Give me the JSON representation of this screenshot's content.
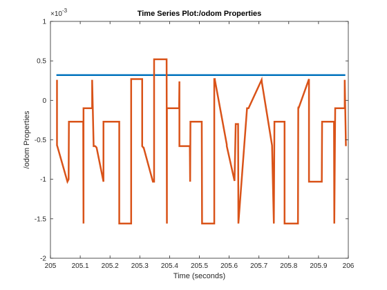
{
  "chart_data": {
    "type": "line",
    "title": "Time Series Plot:/odom Properties",
    "xlabel": "Time (seconds)",
    "ylabel": "/odom Properties",
    "xlim": [
      205,
      206
    ],
    "ylim": [
      -2,
      1
    ],
    "y_exponent_label": "×10",
    "y_exponent_value": "-3",
    "x_ticks": [
      205,
      205.1,
      205.2,
      205.3,
      205.4,
      205.5,
      205.6,
      205.7,
      205.8,
      205.9,
      206
    ],
    "x_tick_labels": [
      "205",
      "205.1",
      "205.2",
      "205.3",
      "205.4",
      "205.5",
      "205.6",
      "205.7",
      "205.8",
      "205.9",
      "206"
    ],
    "y_ticks": [
      -2,
      -1.5,
      -1,
      -0.5,
      0,
      0.5,
      1
    ],
    "y_tick_labels": [
      "-2",
      "-1.5",
      "-1",
      "-0.5",
      "0",
      "0.5",
      "1"
    ],
    "grid": false,
    "series": [
      {
        "color": "#0072BD",
        "x": [
          205.02,
          205.99
        ],
        "y": [
          0.32,
          0.32
        ]
      },
      {
        "color": "#D95319",
        "x": [
          205.022,
          205.022,
          205.023,
          205.057,
          205.061,
          205.062,
          205.062,
          205.11,
          205.111,
          205.111,
          205.113,
          205.113,
          205.14,
          205.14,
          205.145,
          205.146,
          205.15,
          205.153,
          205.155,
          205.178,
          205.178,
          205.18,
          205.231,
          205.231,
          205.232,
          205.232,
          205.271,
          205.271,
          205.308,
          205.308,
          205.312,
          205.313,
          205.344,
          205.348,
          205.348,
          205.39,
          205.391,
          205.391,
          205.432,
          205.433,
          205.433,
          205.468,
          205.469,
          205.47,
          205.47,
          205.508,
          205.509,
          205.509,
          205.55,
          205.55,
          205.552,
          205.552,
          205.592,
          205.592,
          205.618,
          205.622,
          205.63,
          205.631,
          205.66,
          205.66,
          205.665,
          205.665,
          205.709,
          205.71,
          205.711,
          205.744,
          205.75,
          205.752,
          205.786,
          205.786,
          205.791,
          205.791,
          205.831,
          205.832,
          205.833,
          205.833,
          205.868,
          205.868,
          205.871,
          205.873,
          205.911,
          205.912,
          205.912,
          205.952,
          205.953,
          205.956,
          205.958,
          205.988,
          205.988,
          205.992
        ],
        "y": [
          0.26,
          -0.57,
          -0.58,
          -1.03,
          -1.0,
          -0.28,
          -0.27,
          -0.27,
          -1.56,
          -0.1,
          -0.1,
          -0.1,
          -0.1,
          0.26,
          -0.58,
          -0.58,
          -0.58,
          -0.59,
          -0.6,
          -1.03,
          -0.27,
          -0.27,
          -0.27,
          -1.56,
          -1.56,
          -1.56,
          -1.56,
          0.27,
          0.27,
          -0.58,
          -0.6,
          -0.6,
          -1.03,
          -1.03,
          0.52,
          0.52,
          -1.56,
          -0.1,
          -0.1,
          0.24,
          -0.58,
          -0.58,
          -1.03,
          -0.28,
          -0.27,
          -0.27,
          -1.56,
          -1.56,
          -1.56,
          0.27,
          0.27,
          0.26,
          -0.56,
          -0.58,
          -1.02,
          -0.3,
          -0.3,
          -1.56,
          -0.1,
          -0.1,
          -0.1,
          -0.1,
          0.26,
          0.22,
          0.2,
          -0.57,
          -1.56,
          -0.27,
          -0.27,
          -1.56,
          -1.56,
          -1.56,
          -1.56,
          -0.1,
          -0.08,
          -0.1,
          0.27,
          -1.03,
          -1.03,
          -1.03,
          -1.03,
          -0.27,
          -0.27,
          -0.27,
          -1.56,
          -0.1,
          -0.1,
          -0.1,
          0.26,
          -0.58
        ]
      }
    ]
  }
}
